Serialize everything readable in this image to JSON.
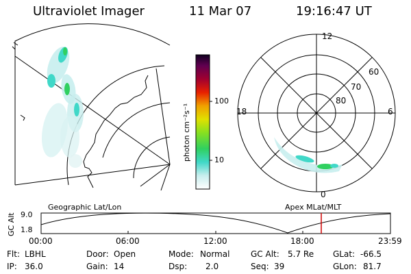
{
  "header": {
    "instrument": "Ultraviolet Imager",
    "date": "11 Mar 07",
    "time": "19:16:47 UT"
  },
  "left_panel": {
    "caption": "Geographic Lat/Lon"
  },
  "colorbar": {
    "unit_label": "photon cm⁻²s⁻¹",
    "tick_100": "100",
    "tick_10": "10"
  },
  "right_panel": {
    "caption": "Apex MLat/MLT",
    "mlt_12": "12",
    "mlt_18": "18",
    "mlt_6": "6",
    "mlt_0": "0",
    "lat_60": "60",
    "lat_70": "70",
    "lat_80": "80"
  },
  "altitude_plot": {
    "ylabel": "GC Alt",
    "ymax": "9.0",
    "ymin": "1.8",
    "ticks": [
      "00:00",
      "06:00",
      "12:00",
      "18:00",
      "23:59"
    ]
  },
  "info": {
    "filter_label": "Flt:",
    "filter_value": "LBHL",
    "ip_label": "IP:",
    "ip_value": "36.0",
    "door_label": "Door:",
    "door_value": "Open",
    "gain_label": "Gain:",
    "gain_value": "14",
    "mode_label": "Mode:",
    "mode_value": "Normal",
    "dsp_label": "Dsp:",
    "dsp_value": "2.0",
    "gcalt_label": "GC Alt:",
    "gcalt_value": "5.7 Re",
    "seq_label": "Seq:",
    "seq_value": "39",
    "glat_label": "GLat:",
    "glat_value": "-66.5",
    "glon_label": "GLon:",
    "glon_value": "81.7"
  }
}
